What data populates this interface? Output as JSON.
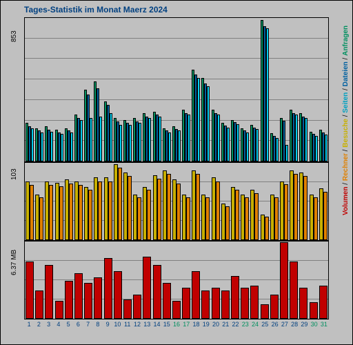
{
  "title": "Tages-Statistik im Monat Maerz 2024",
  "background_color": "#c0c0c0",
  "border_color": "#000000",
  "grid_color": "#808080",
  "days": 31,
  "xaxis": {
    "labels": [
      "1",
      "2",
      "3",
      "4",
      "5",
      "6",
      "7",
      "8",
      "9",
      "10",
      "11",
      "12",
      "13",
      "14",
      "15",
      "16",
      "17",
      "18",
      "19",
      "20",
      "21",
      "22",
      "23",
      "24",
      "25",
      "26",
      "27",
      "28",
      "29",
      "30",
      "31"
    ],
    "special_color_days": [
      16,
      17,
      23,
      24,
      30,
      31
    ],
    "normal_color": "#004080",
    "special_color": "#009060"
  },
  "side_legend": {
    "items": [
      {
        "text": "Volumen",
        "color": "#c00000"
      },
      {
        "text": "Rechner",
        "color": "#e08000"
      },
      {
        "text": "Besuche",
        "color": "#c8b000"
      },
      {
        "text": "Seiten",
        "color": "#00a0c0"
      },
      {
        "text": "Dateien",
        "color": "#0060a0"
      },
      {
        "text": "Anfragen",
        "color": "#009060"
      }
    ],
    "separator": " / "
  },
  "panel1": {
    "ylabel": "853",
    "ymax": 853,
    "grid_lines": 6,
    "series": [
      {
        "name": "anfragen",
        "color": "#009060",
        "values": [
          230,
          200,
          210,
          190,
          200,
          280,
          430,
          480,
          360,
          260,
          250,
          260,
          290,
          300,
          200,
          210,
          310,
          550,
          500,
          310,
          230,
          250,
          200,
          220,
          850,
          170,
          260,
          310,
          290,
          180,
          190
        ]
      },
      {
        "name": "dateien",
        "color": "#0060a0",
        "values": [
          210,
          185,
          190,
          175,
          185,
          260,
          400,
          440,
          340,
          240,
          230,
          240,
          270,
          280,
          185,
          195,
          290,
          520,
          470,
          290,
          215,
          235,
          185,
          205,
          810,
          155,
          245,
          290,
          270,
          165,
          175
        ]
      },
      {
        "name": "seiten",
        "color": "#00d0f0",
        "values": [
          200,
          175,
          180,
          165,
          175,
          250,
          260,
          270,
          290,
          220,
          220,
          230,
          260,
          270,
          175,
          185,
          280,
          500,
          450,
          280,
          205,
          225,
          175,
          195,
          800,
          140,
          100,
          280,
          260,
          155,
          160
        ]
      }
    ]
  },
  "panel2": {
    "ylabel": "103",
    "ymax": 103,
    "grid_lines": 3,
    "series": [
      {
        "name": "besuche",
        "color": "#c8b000",
        "values": [
          80,
          62,
          80,
          78,
          82,
          80,
          72,
          85,
          85,
          103,
          92,
          62,
          72,
          88,
          95,
          82,
          62,
          95,
          62,
          85,
          50,
          72,
          62,
          68,
          35,
          62,
          80,
          95,
          92,
          62,
          70
        ]
      },
      {
        "name": "rechner",
        "color": "#e08000",
        "values": [
          75,
          58,
          75,
          73,
          77,
          75,
          68,
          80,
          80,
          98,
          87,
          58,
          68,
          83,
          90,
          77,
          58,
          90,
          58,
          80,
          46,
          68,
          58,
          64,
          32,
          58,
          76,
          90,
          87,
          58,
          66
        ]
      }
    ]
  },
  "panel3": {
    "ylabel": "6.37 MB",
    "ymax": 6.37,
    "grid_lines": 3,
    "series": [
      {
        "name": "volumen",
        "color": "#c00000",
        "values": [
          4.8,
          2.4,
          4.5,
          1.5,
          3.2,
          3.8,
          3.0,
          3.5,
          5.1,
          4.0,
          1.6,
          2.0,
          5.2,
          4.5,
          3.0,
          1.5,
          2.6,
          4.0,
          2.4,
          2.6,
          2.4,
          3.6,
          2.6,
          2.8,
          1.2,
          2.0,
          6.4,
          4.8,
          2.6,
          1.4,
          2.8
        ]
      }
    ]
  }
}
